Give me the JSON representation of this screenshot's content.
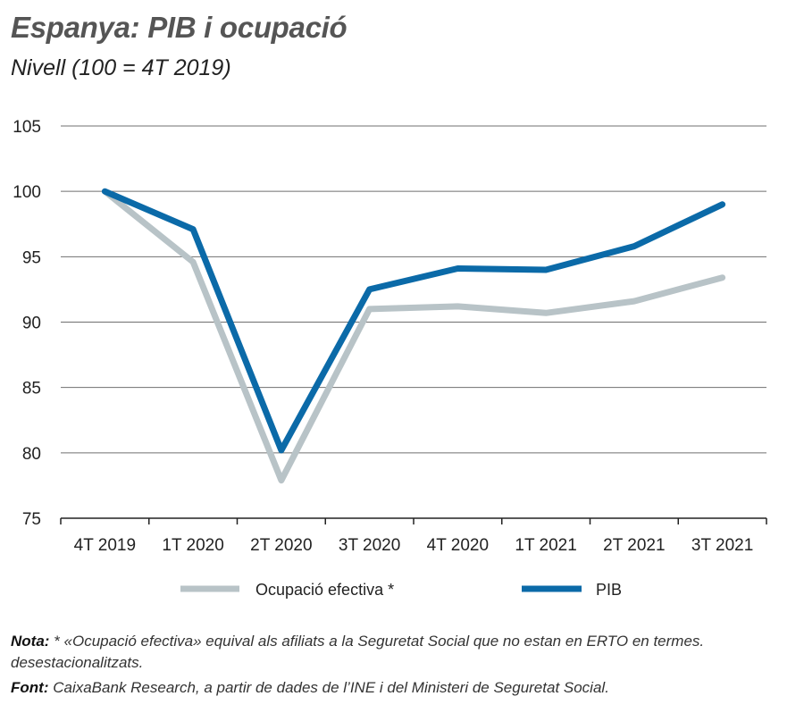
{
  "title": "Espanya: PIB i ocupació",
  "subtitle": "Nivell (100 = 4T 2019)",
  "chart_data": {
    "type": "line",
    "categories": [
      "4T 2019",
      "1T 2020",
      "2T 2020",
      "3T 2020",
      "4T 2020",
      "1T 2021",
      "2T 2021",
      "3T 2021"
    ],
    "series": [
      {
        "name": "Ocupació efectiva *",
        "color": "#b8c3c7",
        "values": [
          100,
          94.6,
          77.9,
          91.0,
          91.2,
          90.7,
          91.6,
          93.4
        ]
      },
      {
        "name": "PIB",
        "color": "#0b6aa8",
        "values": [
          100,
          97.1,
          80.2,
          92.5,
          94.1,
          94.0,
          95.8,
          99.0
        ]
      }
    ],
    "ylim": [
      75,
      105
    ],
    "yticks": [
      75,
      80,
      85,
      90,
      95,
      100,
      105
    ],
    "grid": true,
    "legend": "bottom",
    "xlabel": "",
    "ylabel": ""
  },
  "notes": {
    "nota_label": "Nota:",
    "nota_text": " * «Ocupació efectiva» equival als afiliats a la Seguretat Social que no estan en ERTO en termes.",
    "nota_text2": "desestacionalitzats.",
    "font_label": "Font:",
    "font_text": " CaixaBank Research, a partir de dades de l’INE i del Ministeri de Seguretat Social."
  }
}
